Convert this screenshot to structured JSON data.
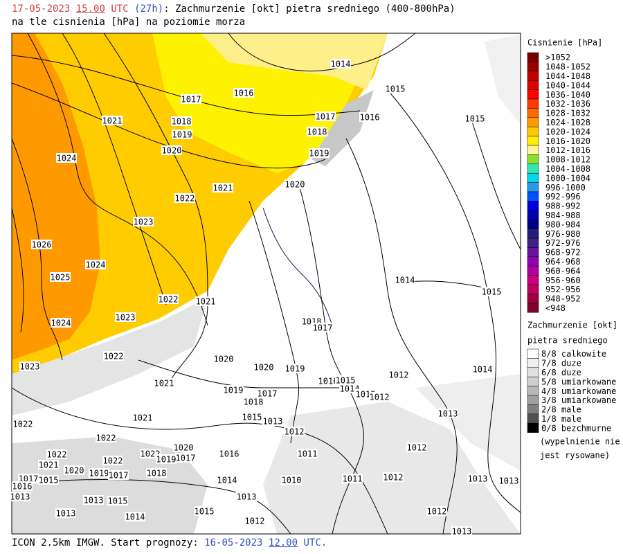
{
  "header": {
    "date": "17-05-2023",
    "hour": "15.00",
    "utc": "UTC",
    "lead": "(27h)",
    "title": ": Zachmurzenie [okt] pietra sredniego (400-800hPa)",
    "subtitle": "na tle cisnienia [hPa] na poziomie morza"
  },
  "footer": {
    "model": "ICON 2.5km IMGW. Start prognozy:",
    "start_date": "16-05-2023",
    "start_hour": "12.00",
    "utc": "UTC."
  },
  "pressure_legend": {
    "title": "Cisnienie [hPa]",
    "entries": [
      {
        "label": ">1052",
        "color": "#7a0000"
      },
      {
        "label": "1048-1052",
        "color": "#9a0000"
      },
      {
        "label": "1044-1048",
        "color": "#c00000"
      },
      {
        "label": "1040-1044",
        "color": "#e00000"
      },
      {
        "label": "1036-1040",
        "color": "#ff0000"
      },
      {
        "label": "1032-1036",
        "color": "#ff3a00"
      },
      {
        "label": "1028-1032",
        "color": "#ff6a00"
      },
      {
        "label": "1024-1028",
        "color": "#ff9900"
      },
      {
        "label": "1020-1024",
        "color": "#ffc800"
      },
      {
        "label": "1016-1020",
        "color": "#ffee00"
      },
      {
        "label": "1012-1016",
        "color": "#fff59a"
      },
      {
        "label": "1008-1012",
        "color": "#88e030"
      },
      {
        "label": "1004-1008",
        "color": "#30e8b0"
      },
      {
        "label": "1000-1004",
        "color": "#00d8e8"
      },
      {
        "label": "996-1000",
        "color": "#2898f0"
      },
      {
        "label": "992-996",
        "color": "#0050ff"
      },
      {
        "label": "988-992",
        "color": "#0000e0"
      },
      {
        "label": "984-988",
        "color": "#0000b0"
      },
      {
        "label": "980-984",
        "color": "#000080"
      },
      {
        "label": "976-980",
        "color": "#20207a"
      },
      {
        "label": "972-976",
        "color": "#402080"
      },
      {
        "label": "968-972",
        "color": "#6a10a0"
      },
      {
        "label": "964-968",
        "color": "#9000b0"
      },
      {
        "label": "960-964",
        "color": "#b000a0"
      },
      {
        "label": "956-960",
        "color": "#c80080"
      },
      {
        "label": "952-956",
        "color": "#c00060"
      },
      {
        "label": "948-952",
        "color": "#a00040"
      },
      {
        "label": "<948",
        "color": "#800030"
      }
    ]
  },
  "cloud_legend": {
    "title": "Zachmurzenie [okt]",
    "subtitle": "pietra sredniego",
    "entries": [
      {
        "label": "8/8 calkowite",
        "color": "#ffffff"
      },
      {
        "label": "7/8 duze",
        "color": "#f0f0f0"
      },
      {
        "label": "6/8 duze",
        "color": "#e0e0e0"
      },
      {
        "label": "5/8 umiarkowane",
        "color": "#d0d0d0"
      },
      {
        "label": "4/8 umiarkowane",
        "color": "#b8b8b8"
      },
      {
        "label": "3/8 umiarkowane",
        "color": "#a0a0a0"
      },
      {
        "label": "2/8 male",
        "color": "#808080"
      },
      {
        "label": "1/8 male",
        "color": "#505050"
      },
      {
        "label": "0/8 bezchmurne",
        "color": "#000000"
      }
    ],
    "note": [
      "(wypelnienie nie",
      "jest rysowane)"
    ]
  },
  "isobars": {
    "labels": [
      "1014",
      "1015",
      "1016",
      "1017",
      "1016",
      "1017",
      "1015",
      "1021",
      "1018",
      "1018",
      "1019",
      "1020",
      "1019",
      "1024",
      "1020",
      "1021",
      "1022",
      "1023",
      "1026",
      "1024",
      "1025",
      "1014",
      "1015",
      "1022",
      "1021",
      "1023",
      "1024",
      "1018",
      "1017",
      "1022",
      "1023",
      "1020",
      "1020",
      "1019",
      "1014",
      "1012",
      "1016",
      "1015",
      "1014",
      "1021",
      "1019",
      "1017",
      "1013",
      "1012",
      "1018",
      "1015",
      "1013",
      "1021",
      "1022",
      "1013",
      "1012",
      "1022",
      "1011",
      "1012",
      "1020",
      "1017",
      "1016",
      "1022",
      "1021",
      "1022",
      "1022",
      "1019",
      "1020",
      "1019",
      "1017",
      "1018",
      "1017",
      "1014",
      "1010",
      "1011",
      "1012",
      "1013",
      "1013",
      "1016",
      "1015",
      "1013",
      "1013",
      "1015",
      "1013",
      "1015",
      "1014",
      "1013",
      "1012",
      "1012",
      "1013"
    ]
  }
}
